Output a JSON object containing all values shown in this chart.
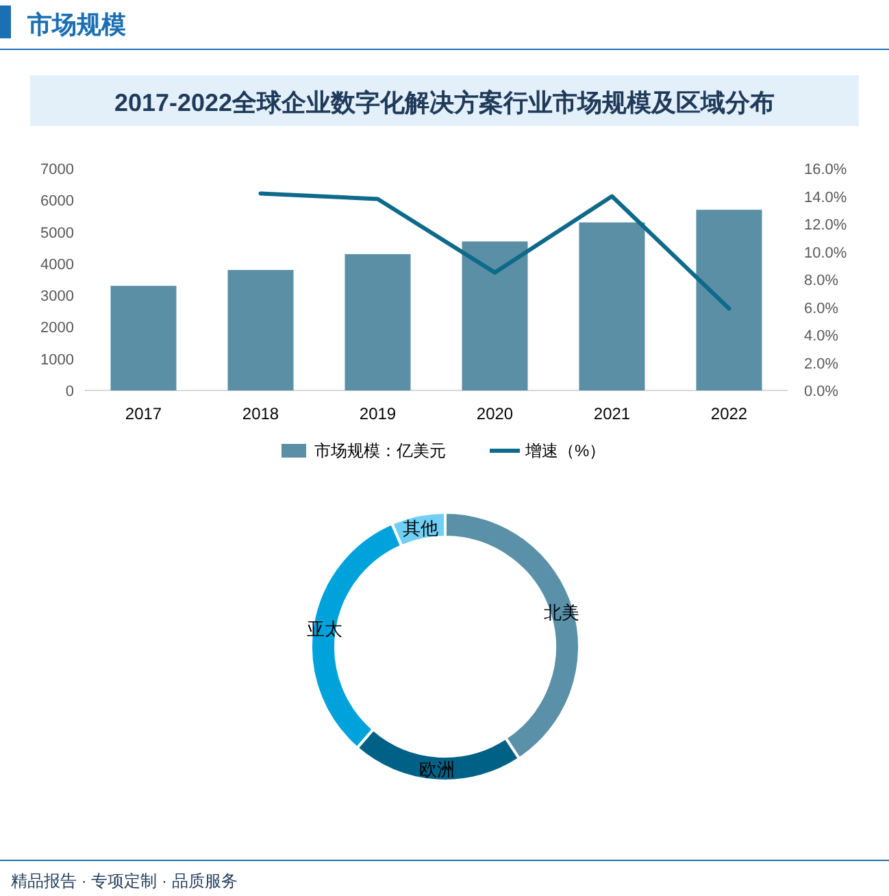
{
  "chart_data": [
    {
      "type": "bar",
      "title": "2017-2022全球企业数字化解决方案行业市场规模及区域分布",
      "annotations": [
        "市场规模"
      ],
      "categories": [
        "2017",
        "2018",
        "2019",
        "2020",
        "2021",
        "2022"
      ],
      "series": [
        {
          "name": "市场规模：亿美元",
          "type": "bar",
          "color": "#5b8fa6",
          "values": [
            3300,
            3800,
            4300,
            4700,
            5300,
            5700
          ]
        },
        {
          "name": "增速（%）",
          "type": "line",
          "axis": "y2",
          "color": "#0e6a8a",
          "values": [
            null,
            14.2,
            13.8,
            8.5,
            14.0,
            5.9
          ]
        }
      ],
      "ylim": [
        0,
        7000
      ],
      "yticks": [
        0,
        1000,
        2000,
        3000,
        4000,
        5000,
        6000,
        7000
      ],
      "y2lim": [
        0,
        16
      ],
      "y2ticks": [
        {
          "value": 0,
          "label": "0.0%"
        },
        {
          "value": 2,
          "label": "2.0%"
        },
        {
          "value": 4,
          "label": "4.0%"
        },
        {
          "value": 6,
          "label": "6.0%"
        },
        {
          "value": 8,
          "label": "8.0%"
        },
        {
          "value": 10,
          "label": "10.0%"
        },
        {
          "value": 12,
          "label": "12.0%"
        },
        {
          "value": 14,
          "label": "14.0%"
        },
        {
          "value": 16,
          "label": "16.0%"
        }
      ],
      "legend": "bottom",
      "marker": "none",
      "line_style": "solid"
    },
    {
      "type": "donut",
      "annotations": [
        "精品报告 · 专项定制 · 品质服务"
      ],
      "categories": [
        "北美",
        "欧洲",
        "亚太",
        "其他"
      ],
      "values": [
        40.7,
        20.7,
        32.1,
        6.5
      ],
      "colors": [
        "#5b91a8",
        "#006186",
        "#00a2dc",
        "#6fcff5"
      ]
    }
  ]
}
